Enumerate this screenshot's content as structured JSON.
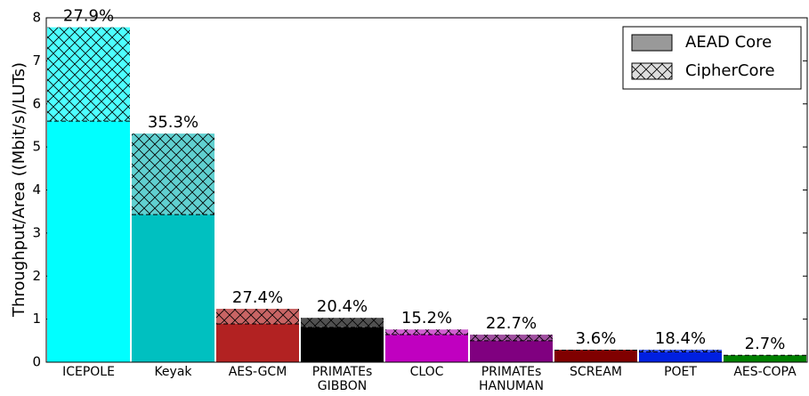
{
  "chart_data": {
    "type": "stacked_bar",
    "ylabel": "Throughput/Area ((Mbit/s)/LUTs)",
    "categories": [
      "ICEPOLE",
      "Keyak",
      "AES-GCM",
      "PRIMATEs\nGIBBON",
      "CLOC",
      "PRIMATEs\nHANUMAN",
      "SCREAM",
      "POET",
      "AES-COPA"
    ],
    "series": [
      {
        "name": "AEAD Core",
        "color": "#999999",
        "colors": [
          "#00ffff",
          "#00c0c0",
          "#b22222",
          "#000000",
          "#c000c0",
          "#800080",
          "#800000",
          "#0020e0",
          "#008000"
        ],
        "values": [
          5.6,
          3.43,
          0.89,
          0.81,
          0.64,
          0.5,
          0.28,
          0.24,
          0.16
        ]
      },
      {
        "name": "CipherCore",
        "color": "#dddddd",
        "colors": [
          "#4dffff",
          "#60d0d0",
          "#c86464",
          "#505050",
          "#d060d0",
          "#a050a0",
          "#a04040",
          "#4060f0",
          "#40a040"
        ],
        "values": [
          2.18,
          1.88,
          0.35,
          0.22,
          0.12,
          0.14,
          0.01,
          0.05,
          0.005
        ]
      }
    ],
    "annotations": [
      "27.9%",
      "35.3%",
      "27.4%",
      "20.4%",
      "15.2%",
      "22.7%",
      "3.6%",
      "18.4%",
      "2.7%"
    ],
    "ylim": [
      0,
      8
    ],
    "yticks": [
      0,
      1,
      2,
      3,
      4,
      5,
      6,
      7,
      8
    ],
    "legend": "upper right"
  }
}
